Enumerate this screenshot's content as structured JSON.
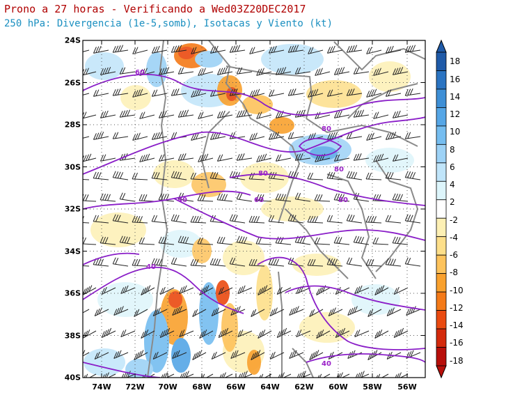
{
  "header": {
    "title": "Prono a 27 horas - Verificando a Wed03Z20DEC2017",
    "subtitle": "250 hPa: Divergencia (1e-5,somb), Isotacas y Viento (kt)"
  },
  "axes": {
    "lat_labels": [
      "24S",
      "26S",
      "28S",
      "30S",
      "32S",
      "34S",
      "36S",
      "38S",
      "40S"
    ],
    "lon_labels": [
      "74W",
      "72W",
      "70W",
      "68W",
      "66W",
      "64W",
      "62W",
      "60W",
      "58W",
      "56W"
    ]
  },
  "colorbar": {
    "labels": [
      "18",
      "16",
      "14",
      "12",
      "10",
      "8",
      "6",
      "4",
      "2",
      "-2",
      "-4",
      "-6",
      "-8",
      "-10",
      "-12",
      "-14",
      "-16",
      "-18"
    ],
    "colors": [
      "#1f5aa8",
      "#2b74c2",
      "#3e8fd6",
      "#55a6e6",
      "#75bdf0",
      "#9dd2f6",
      "#c0e5fa",
      "#ddf5fb",
      "#ffffff",
      "#fdf0b4",
      "#fddf8a",
      "#fdc35c",
      "#f9a12e",
      "#f47a18",
      "#ea4a10",
      "#d42a0c",
      "#b80f0a"
    ]
  },
  "isotachs": {
    "labels": [
      "60",
      "80",
      "80",
      "80",
      "60",
      "80",
      "40",
      "40",
      "40"
    ]
  }
}
